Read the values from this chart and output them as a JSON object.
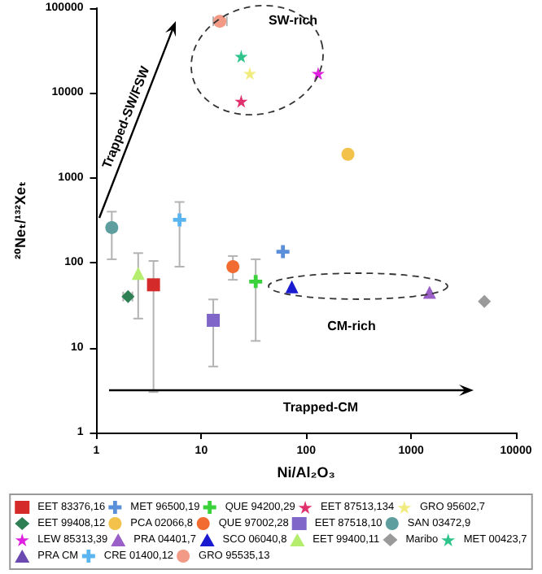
{
  "chart_data": {
    "type": "scatter",
    "xlabel": "Ni/Al₂O₃",
    "ylabel": "²⁰Neₜ/¹³²Xeₜ",
    "log": "xy",
    "xlim": [
      1,
      10000
    ],
    "ylim": [
      1,
      100000
    ],
    "xticks": [
      1,
      10,
      100,
      1000,
      10000
    ],
    "yticks": [
      1,
      10,
      100,
      1000,
      10000,
      100000
    ],
    "legend": "bottom",
    "annotations": [
      "Trapped-SW/FSW",
      "SW-rich",
      "CM-rich",
      "Trapped-CM"
    ],
    "series": [
      {
        "name": "EET 83376,16",
        "color": "#d42a2a",
        "marker": "square",
        "x": [
          3.5
        ],
        "values": [
          55
        ],
        "errors": [
          [
            3,
            105
          ]
        ]
      },
      {
        "name": "MET 96500,19",
        "color": "#5b8fd9",
        "marker": "cross",
        "x": [
          60
        ],
        "values": [
          135
        ]
      },
      {
        "name": "QUE 94200,29",
        "color": "#3ad13a",
        "marker": "cross",
        "x": [
          33
        ],
        "values": [
          60
        ],
        "errors": [
          [
            12,
            110
          ]
        ]
      },
      {
        "name": "EET 87513,134",
        "color": "#e0306e",
        "marker": "star",
        "x": [
          24
        ],
        "values": [
          8000
        ]
      },
      {
        "name": "GRO 95602,7",
        "color": "#f2ec80",
        "marker": "star",
        "x": [
          29
        ],
        "values": [
          17000
        ]
      },
      {
        "name": "EET 99408,12",
        "color": "#2f7f55",
        "marker": "diamond",
        "x": [
          2
        ],
        "values": [
          40
        ],
        "xerrors": [
          [
            1.8,
            2.2
          ]
        ]
      },
      {
        "name": "PCA 02066,8",
        "color": "#f3c24a",
        "marker": "circle",
        "x": [
          250
        ],
        "values": [
          1900
        ]
      },
      {
        "name": "QUE 97002,28",
        "color": "#f26b30",
        "marker": "circle",
        "x": [
          20
        ],
        "values": [
          90
        ],
        "errors": [
          [
            63,
            120
          ]
        ]
      },
      {
        "name": "EET 87518,10",
        "color": "#7f66c8",
        "marker": "square",
        "x": [
          13
        ],
        "values": [
          21
        ],
        "errors": [
          [
            6,
            37
          ]
        ]
      },
      {
        "name": "SAN 03472,9",
        "color": "#5f9e9e",
        "marker": "circle",
        "x": [
          1.4
        ],
        "values": [
          260
        ],
        "errors": [
          [
            110,
            400
          ]
        ]
      },
      {
        "name": "LEW 85313,39",
        "color": "#e020e0",
        "marker": "star",
        "x": [
          130
        ],
        "values": [
          17000
        ]
      },
      {
        "name": "PRA 04401,7",
        "color": "#9a60c8",
        "marker": "triangle",
        "x": [
          1500
        ],
        "values": [
          45
        ]
      },
      {
        "name": "SCO 06040,8",
        "color": "#1a1ad0",
        "marker": "triangle",
        "x": [
          73
        ],
        "values": [
          52
        ]
      },
      {
        "name": "EET 99400,11",
        "color": "#b5ee6e",
        "marker": "triangle",
        "x": [
          2.5
        ],
        "values": [
          75
        ],
        "errors": [
          [
            22,
            130
          ]
        ]
      },
      {
        "name": "Maribo",
        "color": "#9a9a9a",
        "marker": "diamond",
        "x": [
          5000
        ],
        "values": [
          35
        ]
      },
      {
        "name": "MET 00423,7",
        "color": "#2ec48c",
        "marker": "star",
        "x": [
          24
        ],
        "values": [
          27000
        ]
      },
      {
        "name": "PRA CM",
        "color": "#6a4ab0",
        "marker": "triangle",
        "x": [
          null
        ],
        "values": [
          null
        ]
      },
      {
        "name": "CRE 01400,12",
        "color": "#5ab4f0",
        "marker": "cross",
        "x": [
          6.2
        ],
        "values": [
          320
        ],
        "errors": [
          [
            90,
            520
          ]
        ]
      },
      {
        "name": "GRO 95535,13",
        "color": "#f29a86",
        "marker": "circle",
        "x": [
          15
        ],
        "values": [
          70000
        ],
        "xerrors": [
          [
            13,
            17.5
          ]
        ]
      }
    ]
  }
}
